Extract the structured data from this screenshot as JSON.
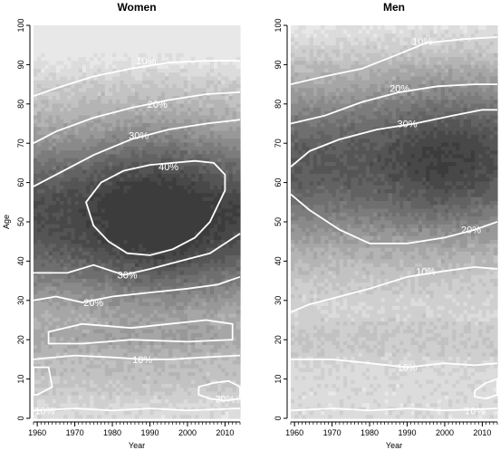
{
  "chart_data": [
    {
      "type": "heatmap",
      "title": "Women",
      "xlabel": "Year",
      "ylabel": "Age",
      "xlim": [
        1959,
        2014
      ],
      "ylim": [
        0,
        100
      ],
      "x_ticks": [
        1960,
        1970,
        1980,
        1990,
        2000,
        2010
      ],
      "y_ticks": [
        0,
        10,
        20,
        30,
        40,
        50,
        60,
        70,
        80,
        90,
        100
      ],
      "grey_levels": [
        "#e8e8e8",
        "#dcdcdc",
        "#cfcfcf",
        "#c2c2c2",
        "#b4b4b4",
        "#a6a6a6",
        "#989898",
        "#8a8a8a",
        "#7c7c7c",
        "#6f6f6f",
        "#626262",
        "#555555",
        "#484848",
        "#3c3c3c"
      ],
      "contours": [
        {
          "label": "10%",
          "label_at": [
            1989,
            91
          ],
          "points": [
            [
              1959,
              82
            ],
            [
              1965,
              84
            ],
            [
              1975,
              87
            ],
            [
              1985,
              89
            ],
            [
              1995,
              90.5
            ],
            [
              2005,
              91
            ],
            [
              2014,
              91
            ]
          ]
        },
        {
          "label": "20%",
          "label_at": [
            1992,
            80
          ],
          "points": [
            [
              1959,
              70
            ],
            [
              1965,
              73
            ],
            [
              1975,
              76.5
            ],
            [
              1985,
              79
            ],
            [
              1995,
              81
            ],
            [
              2005,
              82.5
            ],
            [
              2014,
              83
            ]
          ]
        },
        {
          "label": "30%",
          "label_at": [
            1987,
            72
          ],
          "points": [
            [
              1959,
              59
            ],
            [
              1965,
              62
            ],
            [
              1975,
              67
            ],
            [
              1985,
              71
            ],
            [
              1995,
              73.5
            ],
            [
              2005,
              75
            ],
            [
              2014,
              76
            ]
          ]
        },
        {
          "label": "40%",
          "label_at": [
            1995,
            64
          ],
          "closed": true,
          "points": [
            [
              1973,
              55
            ],
            [
              1977,
              60
            ],
            [
              1983,
              63
            ],
            [
              1990,
              64.5
            ],
            [
              1996,
              65
            ],
            [
              2002,
              65.5
            ],
            [
              2007,
              65
            ],
            [
              2010,
              62
            ],
            [
              2010,
              58
            ],
            [
              2008,
              54
            ],
            [
              2006,
              50
            ],
            [
              2002,
              46
            ],
            [
              1996,
              43
            ],
            [
              1990,
              41.5
            ],
            [
              1984,
              42
            ],
            [
              1979,
              45
            ],
            [
              1975,
              49
            ],
            [
              1973,
              55
            ]
          ]
        },
        {
          "label": "30%",
          "label_at": [
            1984,
            36.5
          ],
          "points": [
            [
              1959,
              37
            ],
            [
              1968,
              37
            ],
            [
              1975,
              39
            ],
            [
              1983,
              36.5
            ],
            [
              1990,
              38
            ],
            [
              1998,
              40
            ],
            [
              2006,
              42
            ],
            [
              2014,
              47
            ]
          ]
        },
        {
          "label": "20%",
          "label_at": [
            1975,
            29.5
          ],
          "points": [
            [
              1959,
              30
            ],
            [
              1965,
              31
            ],
            [
              1972,
              29.5
            ],
            [
              1980,
              31
            ],
            [
              1990,
              32
            ],
            [
              2000,
              33
            ],
            [
              2008,
              34
            ],
            [
              2014,
              36
            ]
          ]
        },
        {
          "label": "",
          "closed": true,
          "points": [
            [
              1963,
              22
            ],
            [
              1972,
              24
            ],
            [
              1985,
              23
            ],
            [
              1995,
              24
            ],
            [
              2005,
              25
            ],
            [
              2012,
              24
            ],
            [
              2012,
              20
            ],
            [
              2000,
              19.5
            ],
            [
              1985,
              20
            ],
            [
              1972,
              19
            ],
            [
              1963,
              19
            ],
            [
              1963,
              22
            ]
          ]
        },
        {
          "label": "10%",
          "label_at": [
            1988,
            15
          ],
          "points": [
            [
              1959,
              15
            ],
            [
              1970,
              16
            ],
            [
              1980,
              15.5
            ],
            [
              1988,
              15
            ],
            [
              1996,
              15
            ],
            [
              2004,
              15.5
            ],
            [
              2014,
              16
            ]
          ]
        },
        {
          "label": "20%",
          "label_at": [
            2010,
            5
          ],
          "closed": true,
          "points": [
            [
              2003,
              8
            ],
            [
              2007,
              9
            ],
            [
              2011,
              9.5
            ],
            [
              2014,
              8
            ],
            [
              2014,
              5
            ],
            [
              2010,
              4.5
            ],
            [
              2006,
              5
            ],
            [
              2003,
              6
            ],
            [
              2003,
              8
            ]
          ]
        },
        {
          "label": "",
          "closed": true,
          "points": [
            [
              1959,
              13
            ],
            [
              1963,
              13
            ],
            [
              1964,
              8
            ],
            [
              1960,
              6
            ],
            [
              1959,
              6
            ]
          ]
        },
        {
          "label": "10%",
          "label_at": [
            1962,
            2
          ],
          "points": [
            [
              1959,
              2
            ],
            [
              1970,
              2.5
            ],
            [
              1980,
              2
            ],
            [
              1990,
              2.5
            ],
            [
              2000,
              2
            ],
            [
              2014,
              2.5
            ]
          ]
        }
      ]
    },
    {
      "type": "heatmap",
      "title": "Men",
      "xlabel": "Year",
      "ylabel": "",
      "xlim": [
        1959,
        2014
      ],
      "ylim": [
        0,
        100
      ],
      "x_ticks": [
        1960,
        1970,
        1980,
        1990,
        2000,
        2010
      ],
      "y_ticks": [
        0,
        10,
        20,
        30,
        40,
        50,
        60,
        70,
        80,
        90,
        100
      ],
      "grey_levels": [
        "#e8e8e8",
        "#dcdcdc",
        "#cfcfcf",
        "#c2c2c2",
        "#b4b4b4",
        "#a6a6a6",
        "#989898",
        "#8a8a8a",
        "#7c7c7c",
        "#6f6f6f",
        "#626262",
        "#555555",
        "#484848",
        "#3c3c3c"
      ],
      "contours": [
        {
          "label": "10%",
          "label_at": [
            1994,
            96
          ],
          "points": [
            [
              1959,
              85
            ],
            [
              1968,
              87
            ],
            [
              1978,
              89
            ],
            [
              1986,
              92
            ],
            [
              1995,
              95.5
            ],
            [
              2005,
              96.5
            ],
            [
              2014,
              97
            ]
          ]
        },
        {
          "label": "20%",
          "label_at": [
            1988,
            84
          ],
          "points": [
            [
              1959,
              75
            ],
            [
              1968,
              77
            ],
            [
              1978,
              80.5
            ],
            [
              1988,
              83
            ],
            [
              1998,
              84.5
            ],
            [
              2008,
              85
            ],
            [
              2014,
              85
            ]
          ]
        },
        {
          "label": "30%",
          "label_at": [
            1990,
            75
          ],
          "points": [
            [
              1959,
              64
            ],
            [
              1964,
              68
            ],
            [
              1972,
              71
            ],
            [
              1982,
              73.5
            ],
            [
              1992,
              75
            ],
            [
              2002,
              77
            ],
            [
              2010,
              78.5
            ],
            [
              2014,
              78.5
            ]
          ]
        },
        {
          "label": "20%",
          "label_at": [
            2007,
            48
          ],
          "points": [
            [
              1959,
              57
            ],
            [
              1964,
              53
            ],
            [
              1972,
              48
            ],
            [
              1980,
              44.5
            ],
            [
              1990,
              44.5
            ],
            [
              2000,
              46
            ],
            [
              2008,
              48
            ],
            [
              2014,
              50
            ]
          ]
        },
        {
          "label": "10%",
          "label_at": [
            1995,
            37.5
          ],
          "points": [
            [
              1959,
              27
            ],
            [
              1964,
              29
            ],
            [
              1972,
              31
            ],
            [
              1980,
              33
            ],
            [
              1990,
              36
            ],
            [
              2000,
              37.5
            ],
            [
              2008,
              38.5
            ],
            [
              2014,
              38
            ]
          ]
        },
        {
          "label": "10%",
          "label_at": [
            1990,
            13
          ],
          "points": [
            [
              1959,
              15
            ],
            [
              1970,
              15
            ],
            [
              1980,
              14
            ],
            [
              1990,
              13
            ],
            [
              2000,
              14
            ],
            [
              2008,
              13.5
            ],
            [
              2014,
              14
            ]
          ]
        },
        {
          "label": "",
          "closed": true,
          "points": [
            [
              2008,
              7
            ],
            [
              2011,
              9
            ],
            [
              2014,
              10
            ],
            [
              2014,
              6
            ],
            [
              2011,
              5
            ],
            [
              2008,
              5.5
            ],
            [
              2008,
              7
            ]
          ]
        },
        {
          "label": "10%",
          "label_at": [
            2008,
            2
          ],
          "points": [
            [
              1959,
              2
            ],
            [
              1970,
              2.5
            ],
            [
              1980,
              2
            ],
            [
              1990,
              2.5
            ],
            [
              2000,
              2
            ],
            [
              2014,
              2.5
            ]
          ]
        }
      ]
    }
  ]
}
